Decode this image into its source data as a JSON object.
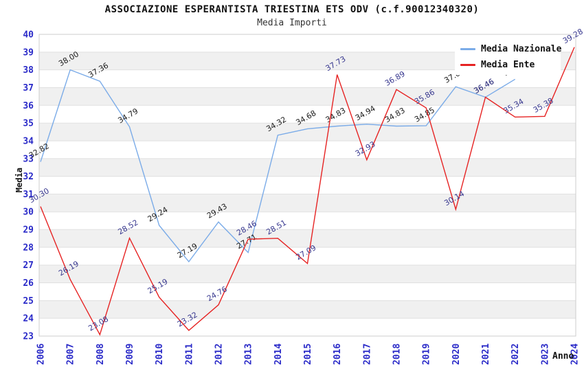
{
  "header": {
    "title": "ASSOCIAZIONE ESPERANTISTA TRIESTINA ETS ODV (c.f.90012340320)",
    "subtitle": "Media Importi"
  },
  "axes": {
    "y_label": "Media",
    "x_label": "Anno",
    "y_ticks": [
      "40",
      "39",
      "38",
      "37",
      "36",
      "35",
      "34",
      "33",
      "32",
      "31",
      "30",
      "29",
      "28",
      "27",
      "26",
      "25",
      "24",
      "23"
    ],
    "tick_color": "#2a2ac8"
  },
  "legend": {
    "items": [
      {
        "label": "Media Nazionale",
        "color": "#7aabe8"
      },
      {
        "label": "Media Ente",
        "color": "#e62222"
      }
    ]
  },
  "chart_data": {
    "type": "line",
    "title": "ASSOCIAZIONE ESPERANTISTA TRIESTINA ETS ODV (c.f.90012340320)",
    "subtitle": "Media Importi",
    "xlabel": "Anno",
    "ylabel": "Media",
    "ylim": [
      23,
      40
    ],
    "grid": "horizontal-stripes",
    "legend_position": "top-right",
    "stripe_color": "#f0f0f0",
    "grid_color": "#e0e0e0",
    "border_color": "#cccccc",
    "x": [
      "2006",
      "2007",
      "2008",
      "2009",
      "2010",
      "2011",
      "2012",
      "2013",
      "2014",
      "2015",
      "2016",
      "2017",
      "2018",
      "2019",
      "2020",
      "2021",
      "2022",
      "2023",
      "2024"
    ],
    "series": [
      {
        "name": "Media Nazionale",
        "color": "#7aabe8",
        "label_color": "#1a1a1a",
        "values": [
          32.82,
          38.0,
          37.36,
          34.79,
          29.24,
          27.19,
          29.43,
          27.71,
          34.32,
          34.68,
          34.83,
          34.94,
          34.83,
          34.85,
          37.05,
          36.46,
          37.47,
          null,
          null
        ]
      },
      {
        "name": "Media Ente",
        "color": "#e62222",
        "label_color": "#38388f",
        "values": [
          30.3,
          26.19,
          23.08,
          28.52,
          25.19,
          23.32,
          24.76,
          28.46,
          28.51,
          27.09,
          37.73,
          32.93,
          36.89,
          35.86,
          30.14,
          36.46,
          35.34,
          35.38,
          39.28
        ]
      }
    ]
  }
}
